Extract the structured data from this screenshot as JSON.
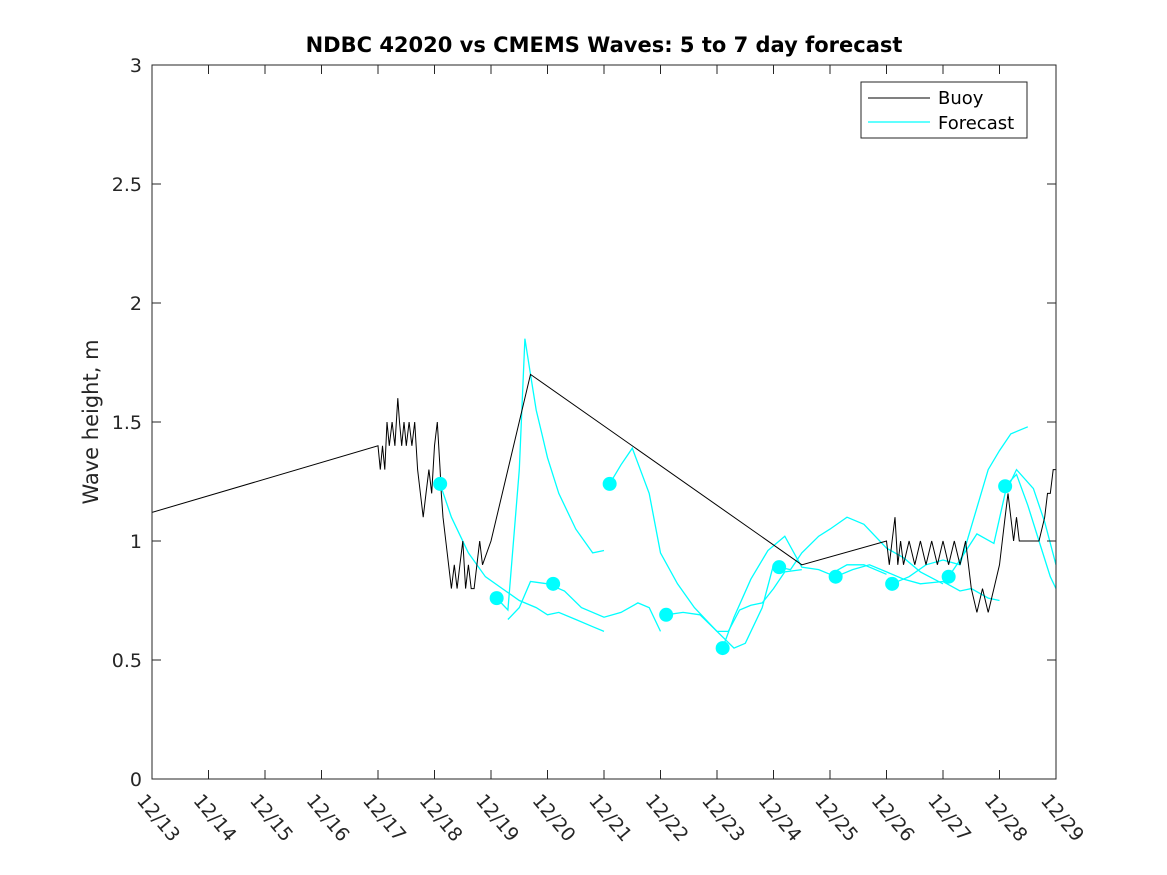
{
  "chart_data": {
    "type": "line",
    "title": "NDBC 42020 vs CMEMS Waves: 5 to 7 day forecast",
    "xlabel": "",
    "ylabel": "Wave height, m",
    "xlim": [
      0,
      16
    ],
    "ylim": [
      0,
      3
    ],
    "x_tick_positions": [
      0,
      1,
      2,
      3,
      4,
      5,
      6,
      7,
      8,
      9,
      10,
      11,
      12,
      13,
      14,
      15,
      16
    ],
    "x_tick_labels": [
      "12/13",
      "12/14",
      "12/15",
      "12/16",
      "12/17",
      "12/18",
      "12/19",
      "12/20",
      "12/21",
      "12/22",
      "12/23",
      "12/24",
      "12/25",
      "12/26",
      "12/27",
      "12/28",
      "12/29"
    ],
    "y_ticks": [
      0,
      0.5,
      1,
      1.5,
      2,
      2.5,
      3
    ],
    "y_tick_labels": [
      "0",
      "0.5",
      "1",
      "1.5",
      "2",
      "2.5",
      "3"
    ],
    "grid": false,
    "legend": {
      "position": "top-right",
      "entries": [
        "Buoy",
        "Forecast"
      ]
    },
    "colors": {
      "buoy": "#000000",
      "forecast": "#00ffff"
    },
    "series": [
      {
        "name": "Buoy",
        "x": [
          0,
          4.0,
          4.04,
          4.08,
          4.12,
          4.16,
          4.2,
          4.25,
          4.3,
          4.35,
          4.38,
          4.42,
          4.46,
          4.5,
          4.55,
          4.6,
          4.65,
          4.7,
          4.75,
          4.8,
          4.85,
          4.9,
          4.95,
          5.0,
          5.05,
          5.1,
          5.12,
          5.15,
          5.2,
          5.25,
          5.3,
          5.35,
          5.4,
          5.45,
          5.5,
          5.55,
          5.6,
          5.65,
          5.7,
          5.75,
          5.8,
          5.85,
          6.0,
          6.7,
          11.5,
          13.0,
          13.05,
          13.1,
          13.15,
          13.2,
          13.25,
          13.3,
          13.4,
          13.5,
          13.6,
          13.7,
          13.8,
          13.9,
          14.0,
          14.1,
          14.2,
          14.3,
          14.4,
          14.5,
          14.6,
          14.7,
          14.8,
          14.9,
          15.0,
          15.05,
          15.1,
          15.15,
          15.2,
          15.25,
          15.3,
          15.35,
          15.4,
          15.45,
          15.5,
          15.6,
          15.7,
          15.8,
          15.85,
          15.9,
          15.95,
          16.0
        ],
        "y": [
          1.12,
          1.4,
          1.3,
          1.4,
          1.3,
          1.5,
          1.4,
          1.5,
          1.4,
          1.6,
          1.5,
          1.4,
          1.5,
          1.4,
          1.5,
          1.4,
          1.5,
          1.3,
          1.2,
          1.1,
          1.2,
          1.3,
          1.2,
          1.4,
          1.5,
          1.3,
          1.2,
          1.1,
          1.0,
          0.9,
          0.8,
          0.9,
          0.8,
          0.9,
          1.0,
          0.8,
          0.9,
          0.8,
          0.8,
          0.9,
          1.0,
          0.9,
          1.0,
          1.7,
          0.9,
          1.0,
          0.9,
          1.0,
          1.1,
          0.9,
          1.0,
          0.9,
          1.0,
          0.9,
          1.0,
          0.9,
          1.0,
          0.9,
          1.0,
          0.9,
          1.0,
          0.9,
          1.0,
          0.8,
          0.7,
          0.8,
          0.7,
          0.8,
          0.9,
          1.0,
          1.1,
          1.2,
          1.1,
          1.0,
          1.1,
          1.0,
          1.0,
          1.0,
          1.0,
          1.0,
          1.0,
          1.1,
          1.2,
          1.2,
          1.3,
          1.3
        ]
      },
      {
        "name": "Forecast",
        "segments": [
          {
            "x": [
              5.1,
              5.3,
              5.6,
              5.9,
              6.2,
              6.5,
              6.8,
              7.0,
              7.2,
              7.5,
              7.8,
              8.0
            ],
            "y": [
              1.24,
              1.1,
              0.95,
              0.85,
              0.8,
              0.75,
              0.72,
              0.69,
              0.7,
              0.67,
              0.64,
              0.62
            ]
          },
          {
            "x": [
              6.1,
              6.3,
              6.5,
              6.6,
              6.7,
              6.8,
              6.9,
              7.0,
              7.2,
              7.5,
              7.8,
              8.0
            ],
            "y": [
              0.76,
              0.71,
              1.3,
              1.85,
              1.7,
              1.55,
              1.45,
              1.35,
              1.2,
              1.05,
              0.95,
              0.96
            ]
          },
          {
            "x": [
              6.3,
              6.5,
              6.7,
              7.0,
              7.3,
              7.6,
              8.0,
              8.3,
              8.6,
              8.8,
              9.0
            ],
            "y": [
              0.67,
              0.72,
              0.83,
              0.82,
              0.79,
              0.72,
              0.68,
              0.7,
              0.74,
              0.72,
              0.62
            ]
          },
          {
            "x": [
              8.1,
              8.3,
              8.5,
              8.8,
              9.0,
              9.3,
              9.6,
              10.0,
              10.3,
              10.5,
              10.8,
              11.0
            ],
            "y": [
              1.24,
              1.32,
              1.39,
              1.2,
              0.95,
              0.82,
              0.72,
              0.62,
              0.55,
              0.57,
              0.72,
              0.9
            ]
          },
          {
            "x": [
              9.1,
              9.4,
              9.7,
              10.0,
              10.2,
              10.4,
              10.6,
              10.8,
              11.0,
              11.2,
              11.5
            ],
            "y": [
              0.69,
              0.7,
              0.69,
              0.62,
              0.62,
              0.71,
              0.73,
              0.74,
              0.8,
              0.87,
              0.88
            ]
          },
          {
            "x": [
              10.1,
              10.3,
              10.6,
              10.9,
              11.2,
              11.5,
              11.8,
              12.0,
              12.3,
              12.6,
              13.0
            ],
            "y": [
              0.55,
              0.68,
              0.84,
              0.96,
              1.02,
              0.89,
              0.88,
              0.86,
              0.9,
              0.9,
              0.86
            ]
          },
          {
            "x": [
              11.1,
              11.3,
              11.5,
              11.8,
              12.0,
              12.3,
              12.6,
              13.0,
              13.3,
              13.6,
              14.0
            ],
            "y": [
              0.89,
              0.88,
              0.95,
              1.02,
              1.05,
              1.1,
              1.07,
              0.97,
              0.93,
              0.87,
              0.82
            ]
          },
          {
            "x": [
              12.1,
              12.4,
              12.7,
              13.0,
              13.3,
              13.6,
              14.0,
              14.3,
              14.5,
              14.8,
              15.0
            ],
            "y": [
              0.85,
              0.88,
              0.9,
              0.87,
              0.84,
              0.82,
              0.83,
              0.79,
              0.8,
              0.76,
              0.75
            ]
          },
          {
            "x": [
              13.1,
              13.4,
              13.7,
              14.0,
              14.3,
              14.5,
              14.8,
              15.0,
              15.2,
              15.5
            ],
            "y": [
              0.82,
              0.85,
              0.9,
              0.92,
              0.9,
              1.06,
              1.3,
              1.38,
              1.45,
              1.48
            ]
          },
          {
            "x": [
              14.1,
              14.3,
              14.6,
              14.9,
              15.1,
              15.3,
              15.6,
              15.8,
              16.0
            ],
            "y": [
              0.85,
              0.92,
              1.03,
              0.99,
              1.2,
              1.3,
              1.22,
              1.08,
              0.9
            ]
          },
          {
            "x": [
              15.1,
              15.3,
              15.5,
              15.7,
              15.9,
              16.0
            ],
            "y": [
              1.23,
              1.28,
              1.15,
              1.0,
              0.85,
              0.8
            ]
          }
        ],
        "markers": {
          "x": [
            5.1,
            6.1,
            7.1,
            8.1,
            9.1,
            10.1,
            11.1,
            12.1,
            13.1,
            14.1,
            15.1
          ],
          "y": [
            1.24,
            0.76,
            0.82,
            1.24,
            0.69,
            0.55,
            0.89,
            0.85,
            0.82,
            0.85,
            1.23
          ]
        }
      }
    ]
  }
}
